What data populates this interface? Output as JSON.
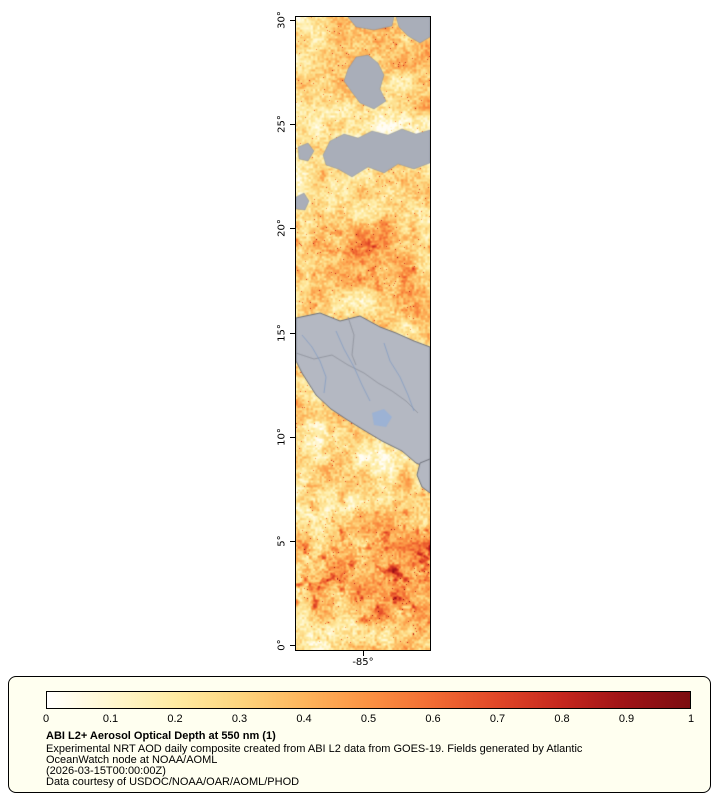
{
  "legend": {
    "title": "ABI L2+ Aerosol Optical Depth at 550 nm (1)",
    "description_line1": "Experimental NRT AOD daily composite created from ABI L2 data from GOES-19. Fields generated by Atlantic",
    "description_line2": "OceanWatch node at NOAA/AOML",
    "timestamp": "(2026-03-15T00:00:00Z)",
    "courtesy": "Data courtesy of USDOC/NOAA/OAR/AOML/PHOD"
  },
  "colorbar": {
    "ticks": [
      "0",
      "0.1",
      "0.2",
      "0.3",
      "0.4",
      "0.5",
      "0.6",
      "0.7",
      "0.8",
      "0.9",
      "1"
    ],
    "stops": [
      {
        "t": "0.0",
        "color": "#ffffff"
      },
      {
        "t": "0.1",
        "color": "#fff7cf"
      },
      {
        "t": "0.2",
        "color": "#feeba2"
      },
      {
        "t": "0.3",
        "color": "#fdd57e"
      },
      {
        "t": "0.4",
        "color": "#fdb55c"
      },
      {
        "t": "0.5",
        "color": "#fb9243"
      },
      {
        "t": "0.6",
        "color": "#f26c33"
      },
      {
        "t": "0.7",
        "color": "#e04727"
      },
      {
        "t": "0.8",
        "color": "#c5271e"
      },
      {
        "t": "0.9",
        "color": "#9e1316"
      },
      {
        "t": "1.0",
        "color": "#7c0d10"
      }
    ]
  },
  "map_axes": {
    "lat_ticks": [
      {
        "label": "30°",
        "value": 30
      },
      {
        "label": "25°",
        "value": 25
      },
      {
        "label": "20°",
        "value": 20
      },
      {
        "label": "15°",
        "value": 15
      },
      {
        "label": "10°",
        "value": 10
      },
      {
        "label": "5°",
        "value": 5
      },
      {
        "label": "0°",
        "value": 0
      }
    ],
    "lon_tick": {
      "label": "-85°",
      "value": -85
    }
  },
  "map_render": {
    "land_color": "#b4b8c2",
    "cloud_color": "#a9aeb9",
    "coast_color": "#6f737c",
    "border_color": "#8d919b",
    "river_color": "#7d9ac4",
    "lake_color": "#9cb2d4"
  },
  "chart_data": {
    "type": "heatmap",
    "title": "ABI L2+ Aerosol Optical Depth at 550 nm (1)",
    "variable": "Aerosol Optical Depth (AOD) at 550 nm",
    "source": "GOES-19 ABI L2 daily composite (Experimental NRT)",
    "timestamp": "2026-03-15T00:00:00Z",
    "colorbar_range": [
      0,
      1
    ],
    "colorbar_ticks": [
      0,
      0.1,
      0.2,
      0.3,
      0.4,
      0.5,
      0.6,
      0.7,
      0.8,
      0.9,
      1
    ],
    "lat_range_deg": [
      0,
      30
    ],
    "lat_ticks_deg": [
      0,
      5,
      10,
      15,
      20,
      25,
      30
    ],
    "lon_ticks_deg": [
      -85
    ],
    "legend_position": "bottom",
    "notes": "Orange-red field is AOD over ocean; gray patches are land/no-data (Central America near 10-15N, patches near 22-25N and 28-30N). Highest AOD south of 8N and near 17-20N."
  }
}
